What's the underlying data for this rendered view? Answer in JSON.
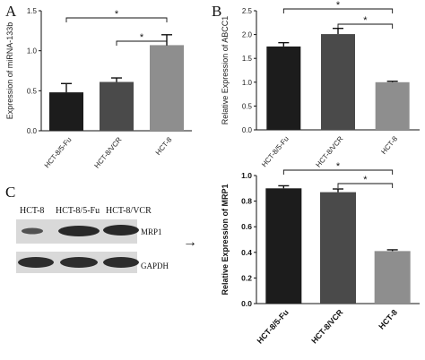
{
  "panels": {
    "A": {
      "letter": "A"
    },
    "B": {
      "letter": "B"
    },
    "C": {
      "letter": "C"
    }
  },
  "blot": {
    "lane_labels": [
      "HCT-8",
      "HCT-8/5-Fu",
      "HCT-8/VCR"
    ],
    "row_labels": [
      "MRP1",
      "GAPDH"
    ],
    "arrow": "→"
  },
  "colors": {
    "bar_dark": "#1c1c1c",
    "bar_mid": "#4a4a4a",
    "bar_light": "#8e8e8e",
    "axis": "#111111"
  },
  "chart_data": [
    {
      "id": "A",
      "type": "bar",
      "categories": [
        "HCT-8/5-Fu",
        "HCT-8/VCR",
        "HCT-8"
      ],
      "values": [
        0.48,
        0.61,
        1.07
      ],
      "errors": [
        0.11,
        0.05,
        0.13
      ],
      "colors": [
        "#1c1c1c",
        "#4a4a4a",
        "#8e8e8e"
      ],
      "ylabel": "Expression of miRNA-133b",
      "ylim": [
        0.0,
        1.5
      ],
      "yticks": [
        "0.0",
        "0.5",
        "1.0",
        "1.5"
      ],
      "significance": [
        {
          "from": 0,
          "to": 2,
          "label": "*"
        },
        {
          "from": 1,
          "to": 2,
          "label": "*"
        }
      ]
    },
    {
      "id": "B",
      "type": "bar",
      "categories": [
        "HCT-8/5-Fu",
        "HCT-8/VCR",
        "HCT-8"
      ],
      "values": [
        1.75,
        2.01,
        1.0
      ],
      "errors": [
        0.08,
        0.12,
        0.02
      ],
      "colors": [
        "#1c1c1c",
        "#4a4a4a",
        "#8e8e8e"
      ],
      "ylabel": "Relative Expression of ABCC1",
      "ylim": [
        0.0,
        2.5
      ],
      "yticks": [
        "0.0",
        "0.5",
        "1.0",
        "1.5",
        "2.0",
        "2.5"
      ],
      "significance": [
        {
          "from": 0,
          "to": 2,
          "label": "*"
        },
        {
          "from": 1,
          "to": 2,
          "label": "*"
        }
      ]
    },
    {
      "id": "C",
      "type": "bar",
      "categories": [
        "HCT-8/5-Fu",
        "HCT-8/VCR",
        "HCT-8"
      ],
      "values": [
        0.9,
        0.87,
        0.41
      ],
      "errors": [
        0.02,
        0.025,
        0.01
      ],
      "colors": [
        "#1c1c1c",
        "#4a4a4a",
        "#8e8e8e"
      ],
      "ylabel": "Relative Expression of MRP1",
      "ylim": [
        0.0,
        1.0
      ],
      "yticks": [
        "0.0",
        "0.2",
        "0.4",
        "0.6",
        "0.8",
        "1.0"
      ],
      "significance": [
        {
          "from": 0,
          "to": 2,
          "label": "*"
        },
        {
          "from": 1,
          "to": 2,
          "label": "*"
        }
      ]
    }
  ]
}
